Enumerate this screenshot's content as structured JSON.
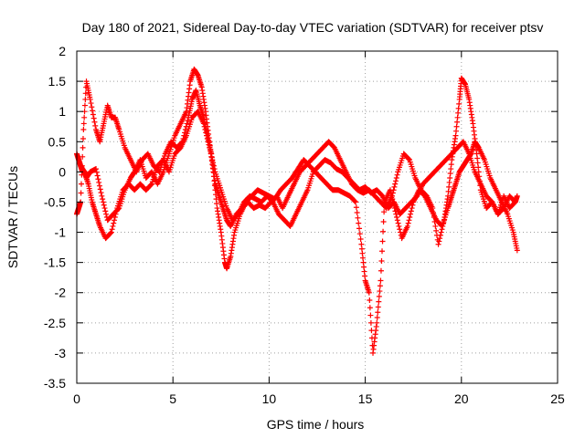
{
  "chart_data": {
    "type": "scatter",
    "title": "Day 180 of 2021, Sidereal Day-to-day VTEC variation (SDTVAR) for receiver ptsv",
    "xlabel": "GPS time / hours",
    "ylabel": "SDTVAR / TECUs",
    "xlim": [
      0,
      25
    ],
    "ylim": [
      -3.5,
      2
    ],
    "grid": true,
    "marker": "+",
    "xticks": [
      0,
      5,
      10,
      15,
      20,
      25
    ],
    "xtick_labels": [
      "0",
      "5",
      "10",
      "15",
      "20",
      "25"
    ],
    "yticks": [
      -3.5,
      -3,
      -2.5,
      -2,
      -1.5,
      -1,
      -0.5,
      0,
      0.5,
      1,
      1.5,
      2
    ],
    "ytick_labels": [
      "-3.5",
      "-3",
      "-2.5",
      "-2",
      "-1.5",
      "-1",
      "-0.5",
      "0",
      "0.5",
      "1",
      "1.5",
      "2"
    ],
    "series": [
      {
        "name": "trace-a",
        "color": "#ff0000",
        "x": [
          0,
          0.1,
          0.2,
          0.3,
          0.4,
          0.5,
          0.7,
          1.0,
          1.3,
          1.6,
          1.9,
          2.2,
          2.5,
          2.8,
          3.0,
          3.3,
          3.6,
          3.9,
          4.2,
          4.5,
          4.8,
          5.1,
          5.4,
          5.7,
          5.9,
          6.1,
          6.3,
          6.5,
          6.7,
          6.9,
          7.1,
          7.3,
          7.5,
          7.7,
          7.8,
          8.0,
          8.2,
          8.5,
          8.8,
          9.1,
          9.4,
          9.7,
          10.0,
          10.3,
          10.6,
          10.9,
          11.2,
          11.5,
          11.8,
          12.1,
          12.4,
          12.7,
          13.0,
          13.3,
          13.6,
          13.9,
          14.2,
          14.5,
          14.8,
          15.0,
          15.2,
          15.4,
          15.6,
          15.8,
          16.0,
          16.3,
          16.6,
          16.9,
          17.2,
          17.5,
          17.8,
          18.1,
          18.4,
          18.7,
          19.0,
          19.3,
          19.5,
          19.7,
          19.9,
          20.1,
          20.3,
          20.5,
          20.7,
          20.9,
          21.2,
          21.5,
          21.8,
          22.1,
          22.4,
          22.7,
          22.9
        ],
        "y": [
          0.3,
          0.2,
          0.1,
          0.0,
          0.0,
          -0.1,
          0.0,
          0.05,
          -0.4,
          -0.8,
          -0.7,
          -0.6,
          -0.3,
          -0.1,
          0.0,
          0.2,
          -0.1,
          0.0,
          -0.2,
          0.0,
          0.3,
          0.6,
          0.8,
          1.0,
          1.5,
          1.7,
          1.6,
          1.4,
          1.0,
          0.5,
          0.0,
          -0.6,
          -1.0,
          -1.5,
          -1.6,
          -1.4,
          -1.0,
          -0.7,
          -0.5,
          -0.4,
          -0.3,
          -0.35,
          -0.4,
          -0.45,
          -0.3,
          -0.2,
          -0.1,
          0.05,
          0.2,
          0.1,
          0.0,
          -0.1,
          -0.2,
          -0.3,
          -0.3,
          -0.35,
          -0.4,
          -0.5,
          -1.2,
          -1.8,
          -2.0,
          -3.0,
          -2.5,
          -1.8,
          -0.5,
          -0.3,
          -0.7,
          -1.1,
          -0.9,
          -0.5,
          -0.3,
          -0.4,
          -0.6,
          -0.8,
          -0.9,
          -0.6,
          -0.4,
          -0.2,
          0.0,
          0.1,
          0.2,
          0.3,
          0.5,
          0.4,
          0.2,
          -0.1,
          -0.3,
          -0.5,
          -0.7,
          -1.0,
          -1.3
        ]
      },
      {
        "name": "trace-b",
        "color": "#ff0000",
        "x": [
          0,
          0.1,
          0.2,
          0.35,
          0.5,
          0.7,
          1.0,
          1.2,
          1.4,
          1.6,
          1.8,
          2.0,
          2.2,
          2.5,
          2.8,
          3.1,
          3.4,
          3.7,
          4.0,
          4.3,
          4.6,
          4.9,
          5.2,
          5.5,
          5.8,
          6.0,
          6.2,
          6.4,
          6.6,
          6.8,
          7.0,
          7.2,
          7.4,
          7.6,
          7.8,
          8.0,
          8.3,
          8.6,
          8.9,
          9.2,
          9.5,
          9.8,
          10.1,
          10.4,
          10.7,
          11.0,
          11.3,
          11.6,
          11.9,
          12.2,
          12.5,
          12.8,
          13.1,
          13.4,
          13.7,
          14.0,
          14.3,
          14.6,
          14.9,
          15.2,
          15.5,
          15.8,
          16.1,
          16.4,
          16.7,
          17.0,
          17.3,
          17.6,
          17.9,
          18.2,
          18.5,
          18.8,
          19.1,
          19.3,
          19.5,
          19.7,
          19.9,
          20.0,
          20.2,
          20.4,
          20.6,
          20.8,
          21.0,
          21.3,
          21.6,
          21.9,
          22.2,
          22.5,
          22.8,
          22.9
        ],
        "y": [
          -0.7,
          -0.6,
          -0.5,
          0.7,
          1.5,
          1.2,
          0.7,
          0.5,
          0.8,
          1.1,
          0.9,
          0.9,
          0.7,
          0.4,
          0.2,
          0.0,
          0.2,
          0.3,
          0.1,
          0.0,
          0.3,
          0.5,
          0.4,
          0.5,
          0.9,
          1.2,
          1.35,
          1.1,
          0.9,
          0.6,
          0.3,
          -0.2,
          -0.4,
          -0.6,
          -0.8,
          -0.9,
          -0.7,
          -0.6,
          -0.5,
          -0.6,
          -0.55,
          -0.6,
          -0.5,
          -0.4,
          -0.6,
          -0.4,
          -0.2,
          0.0,
          0.1,
          0.2,
          0.3,
          0.4,
          0.5,
          0.4,
          0.2,
          0.0,
          -0.2,
          -0.3,
          -0.35,
          -0.3,
          -0.4,
          -0.5,
          -0.6,
          -0.4,
          0.0,
          0.3,
          0.2,
          -0.1,
          -0.3,
          -0.4,
          -0.6,
          -1.2,
          -0.8,
          -0.4,
          0.2,
          0.6,
          1.2,
          1.55,
          1.45,
          1.2,
          0.8,
          0.3,
          -0.3,
          -0.6,
          -0.5,
          -0.7,
          -0.4,
          -0.6,
          -0.5,
          -0.4
        ]
      },
      {
        "name": "trace-c",
        "color": "#ff0000",
        "x": [
          0.2,
          0.4,
          0.6,
          0.8,
          1.0,
          1.2,
          1.5,
          1.8,
          2.1,
          2.4,
          2.7,
          3.0,
          3.3,
          3.6,
          3.9,
          4.2,
          4.5,
          4.8,
          5.1,
          5.4,
          5.7,
          6.0,
          6.3,
          6.6,
          6.9,
          7.2,
          7.5,
          7.8,
          8.1,
          8.4,
          8.7,
          9.0,
          9.3,
          9.6,
          9.9,
          10.2,
          10.5,
          10.8,
          11.1,
          11.4,
          11.7,
          12.0,
          12.3,
          12.6,
          12.9,
          13.2,
          13.5,
          13.8,
          14.1,
          14.4,
          14.7,
          15.0,
          15.3,
          15.6,
          15.9,
          16.2,
          16.5,
          16.8,
          17.1,
          17.4,
          17.7,
          18.0,
          18.3,
          18.6,
          18.9,
          19.2,
          19.5,
          19.8,
          20.1,
          20.4,
          20.7,
          21.0,
          21.3,
          21.6,
          21.9,
          22.2,
          22.5,
          22.8
        ],
        "y": [
          0.1,
          0.0,
          -0.2,
          -0.5,
          -0.7,
          -0.9,
          -1.1,
          -1.0,
          -0.6,
          -0.3,
          -0.2,
          -0.3,
          -0.2,
          -0.3,
          -0.2,
          0.1,
          0.2,
          0.0,
          0.3,
          0.4,
          0.6,
          0.9,
          1.0,
          0.8,
          0.4,
          0.0,
          -0.3,
          -0.6,
          -0.8,
          -0.7,
          -0.5,
          -0.4,
          -0.45,
          -0.5,
          -0.4,
          -0.5,
          -0.7,
          -0.8,
          -0.9,
          -0.7,
          -0.5,
          -0.3,
          0.0,
          0.1,
          0.2,
          0.15,
          0.05,
          0.0,
          -0.1,
          -0.2,
          -0.3,
          -0.25,
          -0.35,
          -0.3,
          -0.4,
          -0.6,
          -0.5,
          -0.7,
          -0.6,
          -0.5,
          -0.4,
          -0.2,
          -0.1,
          0.0,
          0.1,
          0.2,
          0.3,
          0.4,
          0.5,
          0.3,
          0.0,
          -0.2,
          -0.4,
          -0.5,
          -0.7,
          -0.6,
          -0.4,
          -0.5
        ]
      }
    ]
  }
}
